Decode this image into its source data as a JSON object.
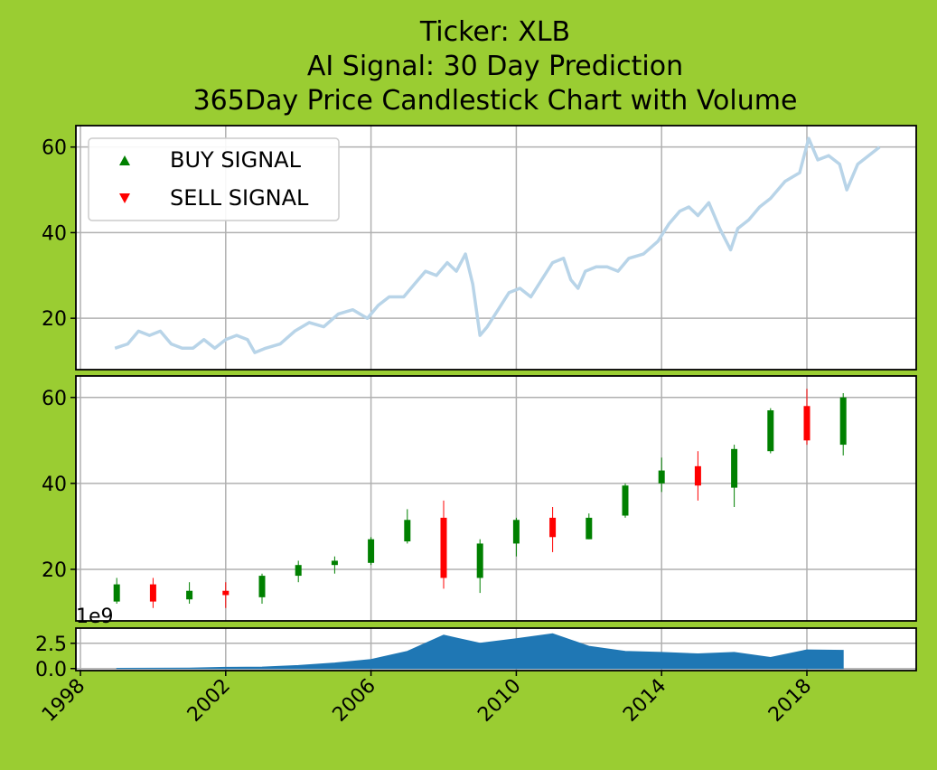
{
  "title_lines": [
    "Ticker: XLB",
    "AI Signal: 30 Day Prediction",
    "365Day Price Candlestick Chart with Volume"
  ],
  "colors": {
    "background": "#9acd32",
    "price_line": "#b8d4e8",
    "up_candle": "#008000",
    "down_candle": "#ff0000",
    "volume_fill": "#1f77b4",
    "grid": "#b0b0b0"
  },
  "chart_data": [
    {
      "type": "line",
      "panel": "price",
      "x_range": [
        1998,
        2021.5
      ],
      "ylim": [
        8,
        65
      ],
      "yticks": [
        20,
        40,
        60
      ],
      "grid": true,
      "legend": {
        "placement": "top-left",
        "entries": [
          {
            "label": "BUY SIGNAL",
            "marker": "triangle-up",
            "color": "#008000"
          },
          {
            "label": "SELL SIGNAL",
            "marker": "triangle-down",
            "color": "#ff0000"
          }
        ]
      },
      "series": [
        {
          "x": [
            1998.95,
            1999.3,
            1999.6,
            1999.9,
            2000.2,
            2000.5,
            2000.8,
            2001.1,
            2001.4,
            2001.7,
            2002.0,
            2002.3,
            2002.6,
            2002.8,
            2003.1,
            2003.5,
            2003.9,
            2004.3,
            2004.7,
            2005.1,
            2005.5,
            2005.9,
            2006.2,
            2006.5,
            2006.9,
            2007.2,
            2007.5,
            2007.8,
            2008.1,
            2008.35,
            2008.6,
            2008.8,
            2009.0,
            2009.2,
            2009.5,
            2009.8,
            2010.1,
            2010.4,
            2010.7,
            2011.0,
            2011.3,
            2011.5,
            2011.7,
            2011.9,
            2012.2,
            2012.5,
            2012.8,
            2013.1,
            2013.5,
            2013.9,
            2014.2,
            2014.5,
            2014.75,
            2015.0,
            2015.3,
            2015.6,
            2015.9,
            2016.1,
            2016.4,
            2016.7,
            2017.0,
            2017.4,
            2017.8,
            2018.05,
            2018.3,
            2018.6,
            2018.9,
            2019.1,
            2019.4,
            2019.7,
            2020.0
          ],
          "y": [
            13,
            14,
            17,
            16,
            17,
            14,
            13,
            13,
            15,
            13,
            15,
            16,
            15,
            12,
            13,
            14,
            17,
            19,
            18,
            21,
            22,
            20,
            23,
            25,
            25,
            28,
            31,
            30,
            33,
            31,
            35,
            28,
            16,
            18,
            22,
            26,
            27,
            25,
            29,
            33,
            34,
            29,
            27,
            31,
            32,
            32,
            31,
            34,
            35,
            38,
            42,
            45,
            46,
            44,
            47,
            41,
            36,
            41,
            43,
            46,
            48,
            52,
            54,
            62,
            57,
            58,
            56,
            50,
            56,
            58,
            60
          ]
        }
      ]
    },
    {
      "type": "candlestick",
      "panel": "candles",
      "ylim": [
        8,
        65
      ],
      "yticks": [
        20,
        40,
        60
      ],
      "grid": true,
      "candles": [
        {
          "x": 1999,
          "open": 12.5,
          "close": 16.5,
          "high": 18,
          "low": 12,
          "signal": "up"
        },
        {
          "x": 2000,
          "open": 16.5,
          "close": 12.5,
          "high": 18,
          "low": 11,
          "signal": "down"
        },
        {
          "x": 2001,
          "open": 13,
          "close": 15,
          "high": 17,
          "low": 12,
          "signal": "up"
        },
        {
          "x": 2002,
          "open": 15,
          "close": 14,
          "high": 17,
          "low": 11,
          "signal": "down"
        },
        {
          "x": 2003,
          "open": 13.5,
          "close": 18.5,
          "high": 19,
          "low": 12,
          "signal": "up"
        },
        {
          "x": 2004,
          "open": 18.5,
          "close": 21,
          "high": 22,
          "low": 17,
          "signal": "up"
        },
        {
          "x": 2005,
          "open": 21,
          "close": 22,
          "high": 23,
          "low": 19,
          "signal": "up"
        },
        {
          "x": 2006,
          "open": 21.5,
          "close": 27,
          "high": 27.5,
          "low": 21,
          "signal": "up"
        },
        {
          "x": 2007,
          "open": 26.5,
          "close": 31.5,
          "high": 34,
          "low": 26,
          "signal": "up"
        },
        {
          "x": 2008,
          "open": 32,
          "close": 18,
          "high": 36,
          "low": 15.5,
          "signal": "down"
        },
        {
          "x": 2009,
          "open": 18,
          "close": 26,
          "high": 27,
          "low": 14.5,
          "signal": "up"
        },
        {
          "x": 2010,
          "open": 26,
          "close": 31.5,
          "high": 32,
          "low": 23,
          "signal": "up"
        },
        {
          "x": 2011,
          "open": 32,
          "close": 27.5,
          "high": 34.5,
          "low": 24,
          "signal": "down"
        },
        {
          "x": 2012,
          "open": 27,
          "close": 32,
          "high": 33,
          "low": 27,
          "signal": "up"
        },
        {
          "x": 2013,
          "open": 32.5,
          "close": 39.5,
          "high": 40,
          "low": 32,
          "signal": "up"
        },
        {
          "x": 2014,
          "open": 40,
          "close": 43,
          "high": 46,
          "low": 38,
          "signal": "up"
        },
        {
          "x": 2015,
          "open": 44,
          "close": 39.5,
          "high": 47.5,
          "low": 36,
          "signal": "down"
        },
        {
          "x": 2016,
          "open": 39,
          "close": 48,
          "high": 49,
          "low": 34.5,
          "signal": "up"
        },
        {
          "x": 2017,
          "open": 47.5,
          "close": 57,
          "high": 57.5,
          "low": 47,
          "signal": "up"
        },
        {
          "x": 2018,
          "open": 58,
          "close": 50,
          "high": 62,
          "low": 49,
          "signal": "down"
        },
        {
          "x": 2019,
          "open": 49,
          "close": 60,
          "high": 61,
          "low": 46.5,
          "signal": "up"
        }
      ]
    },
    {
      "type": "area",
      "panel": "volume",
      "offset_label": "1e9",
      "ylim": [
        -0.2,
        4.0
      ],
      "yticks": [
        "0.0",
        "2.5"
      ],
      "ytick_values": [
        0,
        2.5
      ],
      "grid": true,
      "series": [
        {
          "x": [
            1999,
            2000,
            2001,
            2002,
            2003,
            2004,
            2005,
            2006,
            2007,
            2008,
            2009,
            2010,
            2011,
            2012,
            2013,
            2014,
            2015,
            2016,
            2017,
            2018,
            2019
          ],
          "y": [
            0.02,
            0.03,
            0.05,
            0.12,
            0.15,
            0.3,
            0.55,
            0.9,
            1.7,
            3.3,
            2.5,
            2.95,
            3.45,
            2.2,
            1.7,
            1.6,
            1.45,
            1.6,
            1.1,
            1.85,
            1.8
          ]
        }
      ]
    }
  ],
  "x_axis": {
    "ticks": [
      "1998",
      "2002",
      "2006",
      "2010",
      "2014",
      "2018"
    ],
    "tick_values": [
      1998,
      2002,
      2006,
      2010,
      2014,
      2018
    ]
  }
}
